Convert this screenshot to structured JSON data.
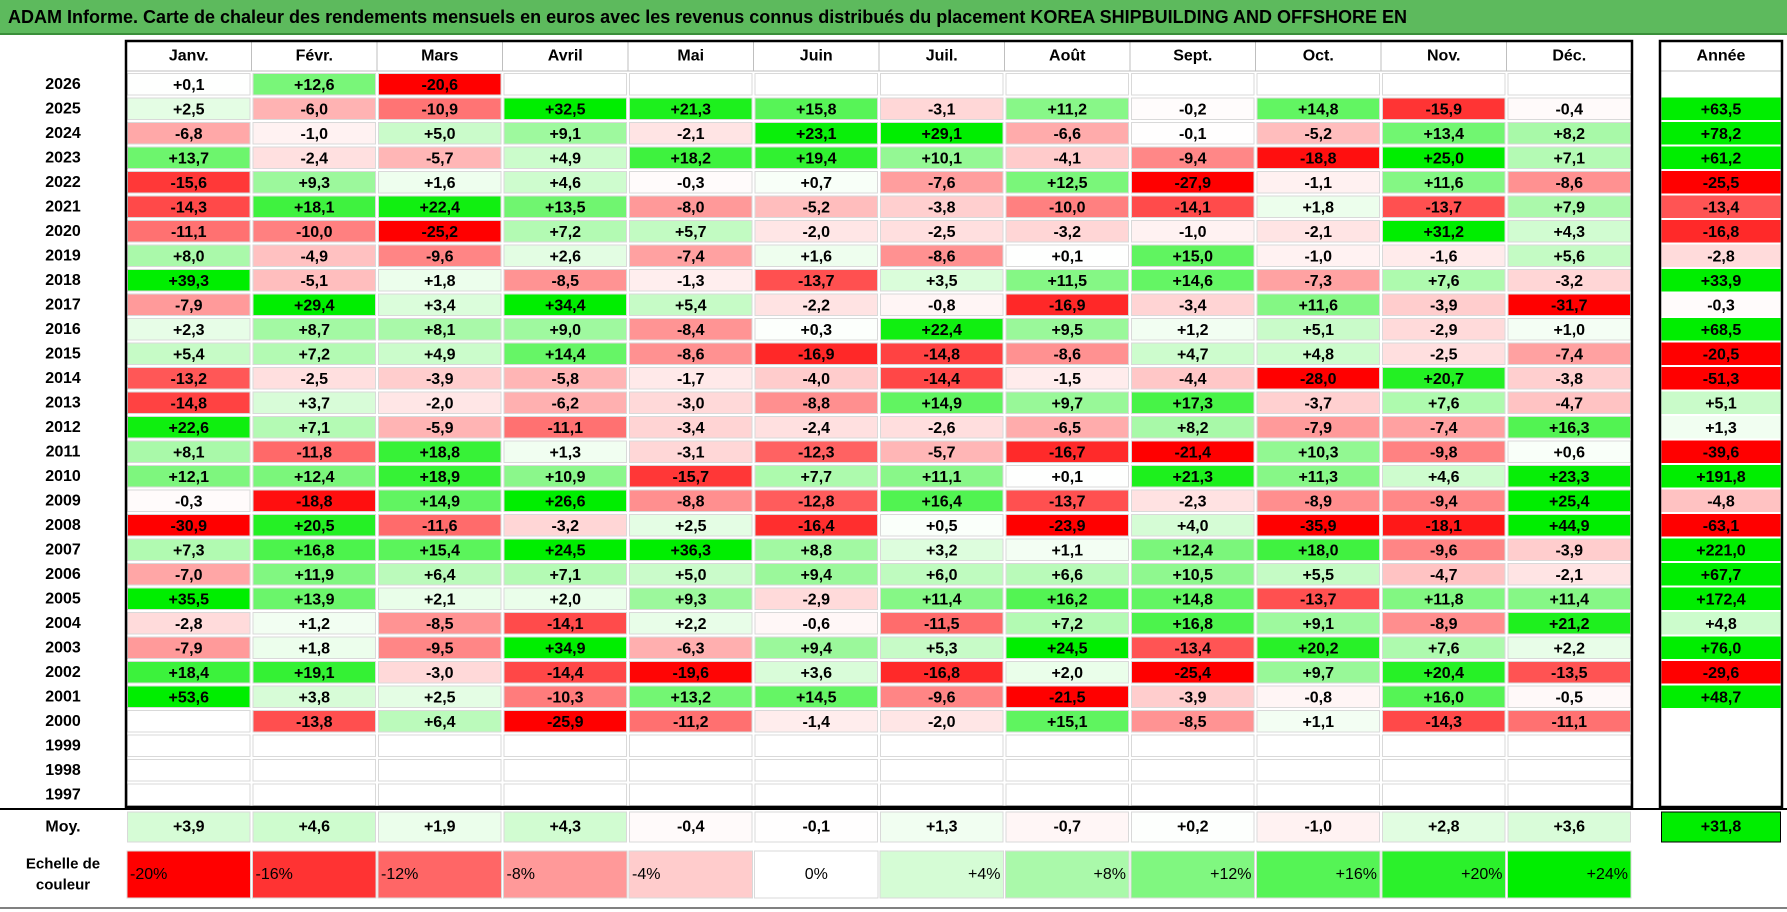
{
  "title": "ADAM Informe. Carte de chaleur des rendements mensuels en euros avec les revenus connus distribués du placement KOREA SHIPBUILDING AND OFFSHORE EN",
  "chart_data": {
    "type": "heatmap",
    "months": [
      "Janv.",
      "Févr.",
      "Mars",
      "Avril",
      "Mai",
      "Juin",
      "Juil.",
      "Août",
      "Sept.",
      "Oct.",
      "Nov.",
      "Déc."
    ],
    "year_header": "Année",
    "years": [
      "2026",
      "2025",
      "2024",
      "2023",
      "2022",
      "2021",
      "2020",
      "2019",
      "2018",
      "2017",
      "2016",
      "2015",
      "2014",
      "2013",
      "2012",
      "2011",
      "2010",
      "2009",
      "2008",
      "2007",
      "2006",
      "2005",
      "2004",
      "2003",
      "2002",
      "2001",
      "2000",
      "1999",
      "1998",
      "1997"
    ],
    "values": [
      [
        "+0,1",
        "+12,6",
        "-20,6",
        "",
        "",
        "",
        "",
        "",
        "",
        "",
        "",
        ""
      ],
      [
        "+2,5",
        "-6,0",
        "-10,9",
        "+32,5",
        "+21,3",
        "+15,8",
        "-3,1",
        "+11,2",
        "-0,2",
        "+14,8",
        "-15,9",
        "-0,4"
      ],
      [
        "-6,8",
        "-1,0",
        "+5,0",
        "+9,1",
        "-2,1",
        "+23,1",
        "+29,1",
        "-6,6",
        "-0,1",
        "-5,2",
        "+13,4",
        "+8,2"
      ],
      [
        "+13,7",
        "-2,4",
        "-5,7",
        "+4,9",
        "+18,2",
        "+19,4",
        "+10,1",
        "-4,1",
        "-9,4",
        "-18,8",
        "+25,0",
        "+7,1"
      ],
      [
        "-15,6",
        "+9,3",
        "+1,6",
        "+4,6",
        "-0,3",
        "+0,7",
        "-7,6",
        "+12,5",
        "-27,9",
        "-1,1",
        "+11,6",
        "-8,6"
      ],
      [
        "-14,3",
        "+18,1",
        "+22,4",
        "+13,5",
        "-8,0",
        "-5,2",
        "-3,8",
        "-10,0",
        "-14,1",
        "+1,8",
        "-13,7",
        "+7,9"
      ],
      [
        "-11,1",
        "-10,0",
        "-25,2",
        "+7,2",
        "+5,7",
        "-2,0",
        "-2,5",
        "-3,2",
        "-1,0",
        "-2,1",
        "+31,2",
        "+4,3"
      ],
      [
        "+8,0",
        "-4,9",
        "-9,6",
        "+2,6",
        "-7,4",
        "+1,6",
        "-8,6",
        "+0,1",
        "+15,0",
        "-1,0",
        "-1,6",
        "+5,6"
      ],
      [
        "+39,3",
        "-5,1",
        "+1,8",
        "-8,5",
        "-1,3",
        "-13,7",
        "+3,5",
        "+11,5",
        "+14,6",
        "-7,3",
        "+7,6",
        "-3,2"
      ],
      [
        "-7,9",
        "+29,4",
        "+3,4",
        "+34,4",
        "+5,4",
        "-2,2",
        "-0,8",
        "-16,9",
        "-3,4",
        "+11,6",
        "-3,9",
        "-31,7"
      ],
      [
        "+2,3",
        "+8,7",
        "+8,1",
        "+9,0",
        "-8,4",
        "+0,3",
        "+22,4",
        "+9,5",
        "+1,2",
        "+5,1",
        "-2,9",
        "+1,0"
      ],
      [
        "+5,4",
        "+7,2",
        "+4,9",
        "+14,4",
        "-8,6",
        "-16,9",
        "-14,8",
        "-8,6",
        "+4,7",
        "+4,8",
        "-2,5",
        "-7,4"
      ],
      [
        "-13,2",
        "-2,5",
        "-3,9",
        "-5,8",
        "-1,7",
        "-4,0",
        "-14,4",
        "-1,5",
        "-4,4",
        "-28,0",
        "+20,7",
        "-3,8"
      ],
      [
        "-14,8",
        "+3,7",
        "-2,0",
        "-6,2",
        "-3,0",
        "-8,8",
        "+14,9",
        "+9,7",
        "+17,3",
        "-3,7",
        "+7,6",
        "-4,7"
      ],
      [
        "+22,6",
        "+7,1",
        "-5,9",
        "-11,1",
        "-3,4",
        "-2,4",
        "-2,6",
        "-6,5",
        "+8,2",
        "-7,9",
        "-7,4",
        "+16,3"
      ],
      [
        "+8,1",
        "-11,8",
        "+18,8",
        "+1,3",
        "-3,1",
        "-12,3",
        "-5,7",
        "-16,7",
        "-21,4",
        "+10,3",
        "-9,8",
        "+0,6"
      ],
      [
        "+12,1",
        "+12,4",
        "+18,9",
        "+10,9",
        "-15,7",
        "+7,7",
        "+11,1",
        "+0,1",
        "+21,3",
        "+11,3",
        "+4,6",
        "+23,3"
      ],
      [
        "-0,3",
        "-18,8",
        "+14,9",
        "+26,6",
        "-8,8",
        "-12,8",
        "+16,4",
        "-13,7",
        "-2,3",
        "-8,9",
        "-9,4",
        "+25,4"
      ],
      [
        "-30,9",
        "+20,5",
        "-11,6",
        "-3,2",
        "+2,5",
        "-16,4",
        "+0,5",
        "-23,9",
        "+4,0",
        "-35,9",
        "-18,1",
        "+44,9"
      ],
      [
        "+7,3",
        "+16,8",
        "+15,4",
        "+24,5",
        "+36,3",
        "+8,8",
        "+3,2",
        "+1,1",
        "+12,4",
        "+18,0",
        "-9,6",
        "-3,9"
      ],
      [
        "-7,0",
        "+11,9",
        "+6,4",
        "+7,1",
        "+5,0",
        "+9,4",
        "+6,0",
        "+6,6",
        "+10,5",
        "+5,5",
        "-4,7",
        "-2,1"
      ],
      [
        "+35,5",
        "+13,9",
        "+2,1",
        "+2,0",
        "+9,3",
        "-2,9",
        "+11,4",
        "+16,2",
        "+14,8",
        "-13,7",
        "+11,8",
        "+11,4"
      ],
      [
        "-2,8",
        "+1,2",
        "-8,5",
        "-14,1",
        "+2,2",
        "-0,6",
        "-11,5",
        "+7,2",
        "+16,8",
        "+9,1",
        "-8,9",
        "+21,2"
      ],
      [
        "-7,9",
        "+1,8",
        "-9,5",
        "+34,9",
        "-6,3",
        "+9,4",
        "+5,3",
        "+24,5",
        "-13,4",
        "+20,2",
        "+7,6",
        "+2,2"
      ],
      [
        "+18,4",
        "+19,1",
        "-3,0",
        "-14,4",
        "-19,6",
        "+3,6",
        "-16,8",
        "+2,0",
        "-25,4",
        "+9,7",
        "+20,4",
        "-13,5"
      ],
      [
        "+53,6",
        "+3,8",
        "+2,5",
        "-10,3",
        "+13,2",
        "+14,5",
        "-9,6",
        "-21,5",
        "-3,9",
        "-0,8",
        "+16,0",
        "-0,5"
      ],
      [
        "",
        "-13,8",
        "+6,4",
        "-25,9",
        "-11,2",
        "-1,4",
        "-2,0",
        "+15,1",
        "-8,5",
        "+1,1",
        "-14,3",
        "-11,1"
      ],
      [
        "",
        "",
        "",
        "",
        "",
        "",
        "",
        "",
        "",
        "",
        "",
        ""
      ],
      [
        "",
        "",
        "",
        "",
        "",
        "",
        "",
        "",
        "",
        "",
        "",
        ""
      ],
      [
        "",
        "",
        "",
        "",
        "",
        "",
        "",
        "",
        "",
        "",
        "",
        ""
      ]
    ],
    "annual": [
      "",
      "+63,5",
      "+78,2",
      "+61,2",
      "-25,5",
      "-13,4",
      "-16,8",
      "-2,8",
      "+33,9",
      "-0,3",
      "+68,5",
      "-20,5",
      "-51,3",
      "+5,1",
      "+1,3",
      "-39,6",
      "+191,8",
      "-4,8",
      "-63,1",
      "+221,0",
      "+67,7",
      "+172,4",
      "+4,8",
      "+76,0",
      "-29,6",
      "+48,7",
      "",
      "",
      "",
      ""
    ],
    "average_label": "Moy.",
    "averages": [
      "+3,9",
      "+4,6",
      "+1,9",
      "+4,3",
      "-0,4",
      "-0,1",
      "+1,3",
      "-0,7",
      "+0,2",
      "-1,0",
      "+2,8",
      "+3,6"
    ],
    "average_annual": "+31,8",
    "scale_label": [
      "Echelle de",
      "couleur"
    ],
    "scale": [
      "-20%",
      "-16%",
      "-12%",
      "-8%",
      "-4%",
      "0%",
      "+4%",
      "+8%",
      "+12%",
      "+16%",
      "+20%",
      "+24%"
    ],
    "colors": {
      "negative": "#ff0000",
      "neutral": "#ffffff",
      "positive": "#00ee00",
      "title_bar": "#5dba5d"
    }
  }
}
